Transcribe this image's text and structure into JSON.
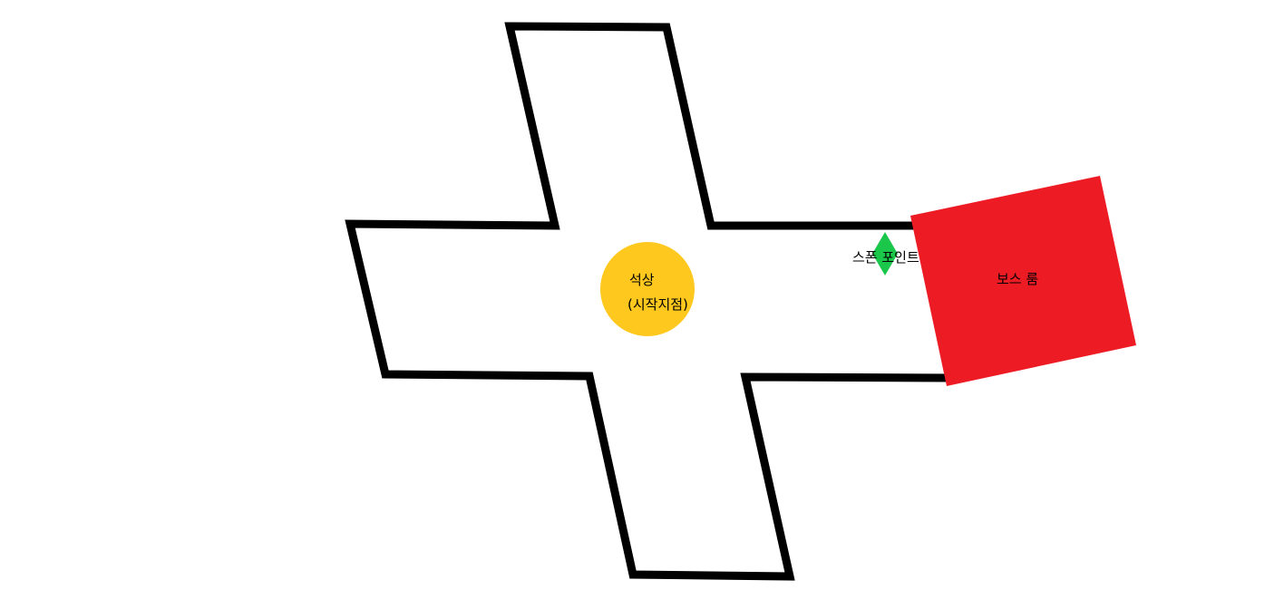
{
  "diagram": {
    "statue": {
      "label_line1": "석상",
      "label_line2": "(시작지점)",
      "color": "#FFC81E"
    },
    "spawn_point": {
      "label": "스폰 포인트",
      "color": "#1BC74A"
    },
    "boss_room": {
      "label": "보스 룸",
      "color": "#ED1C24"
    },
    "cross_outline_color": "#000000",
    "cross_fill_color": "#FFFFFF"
  }
}
